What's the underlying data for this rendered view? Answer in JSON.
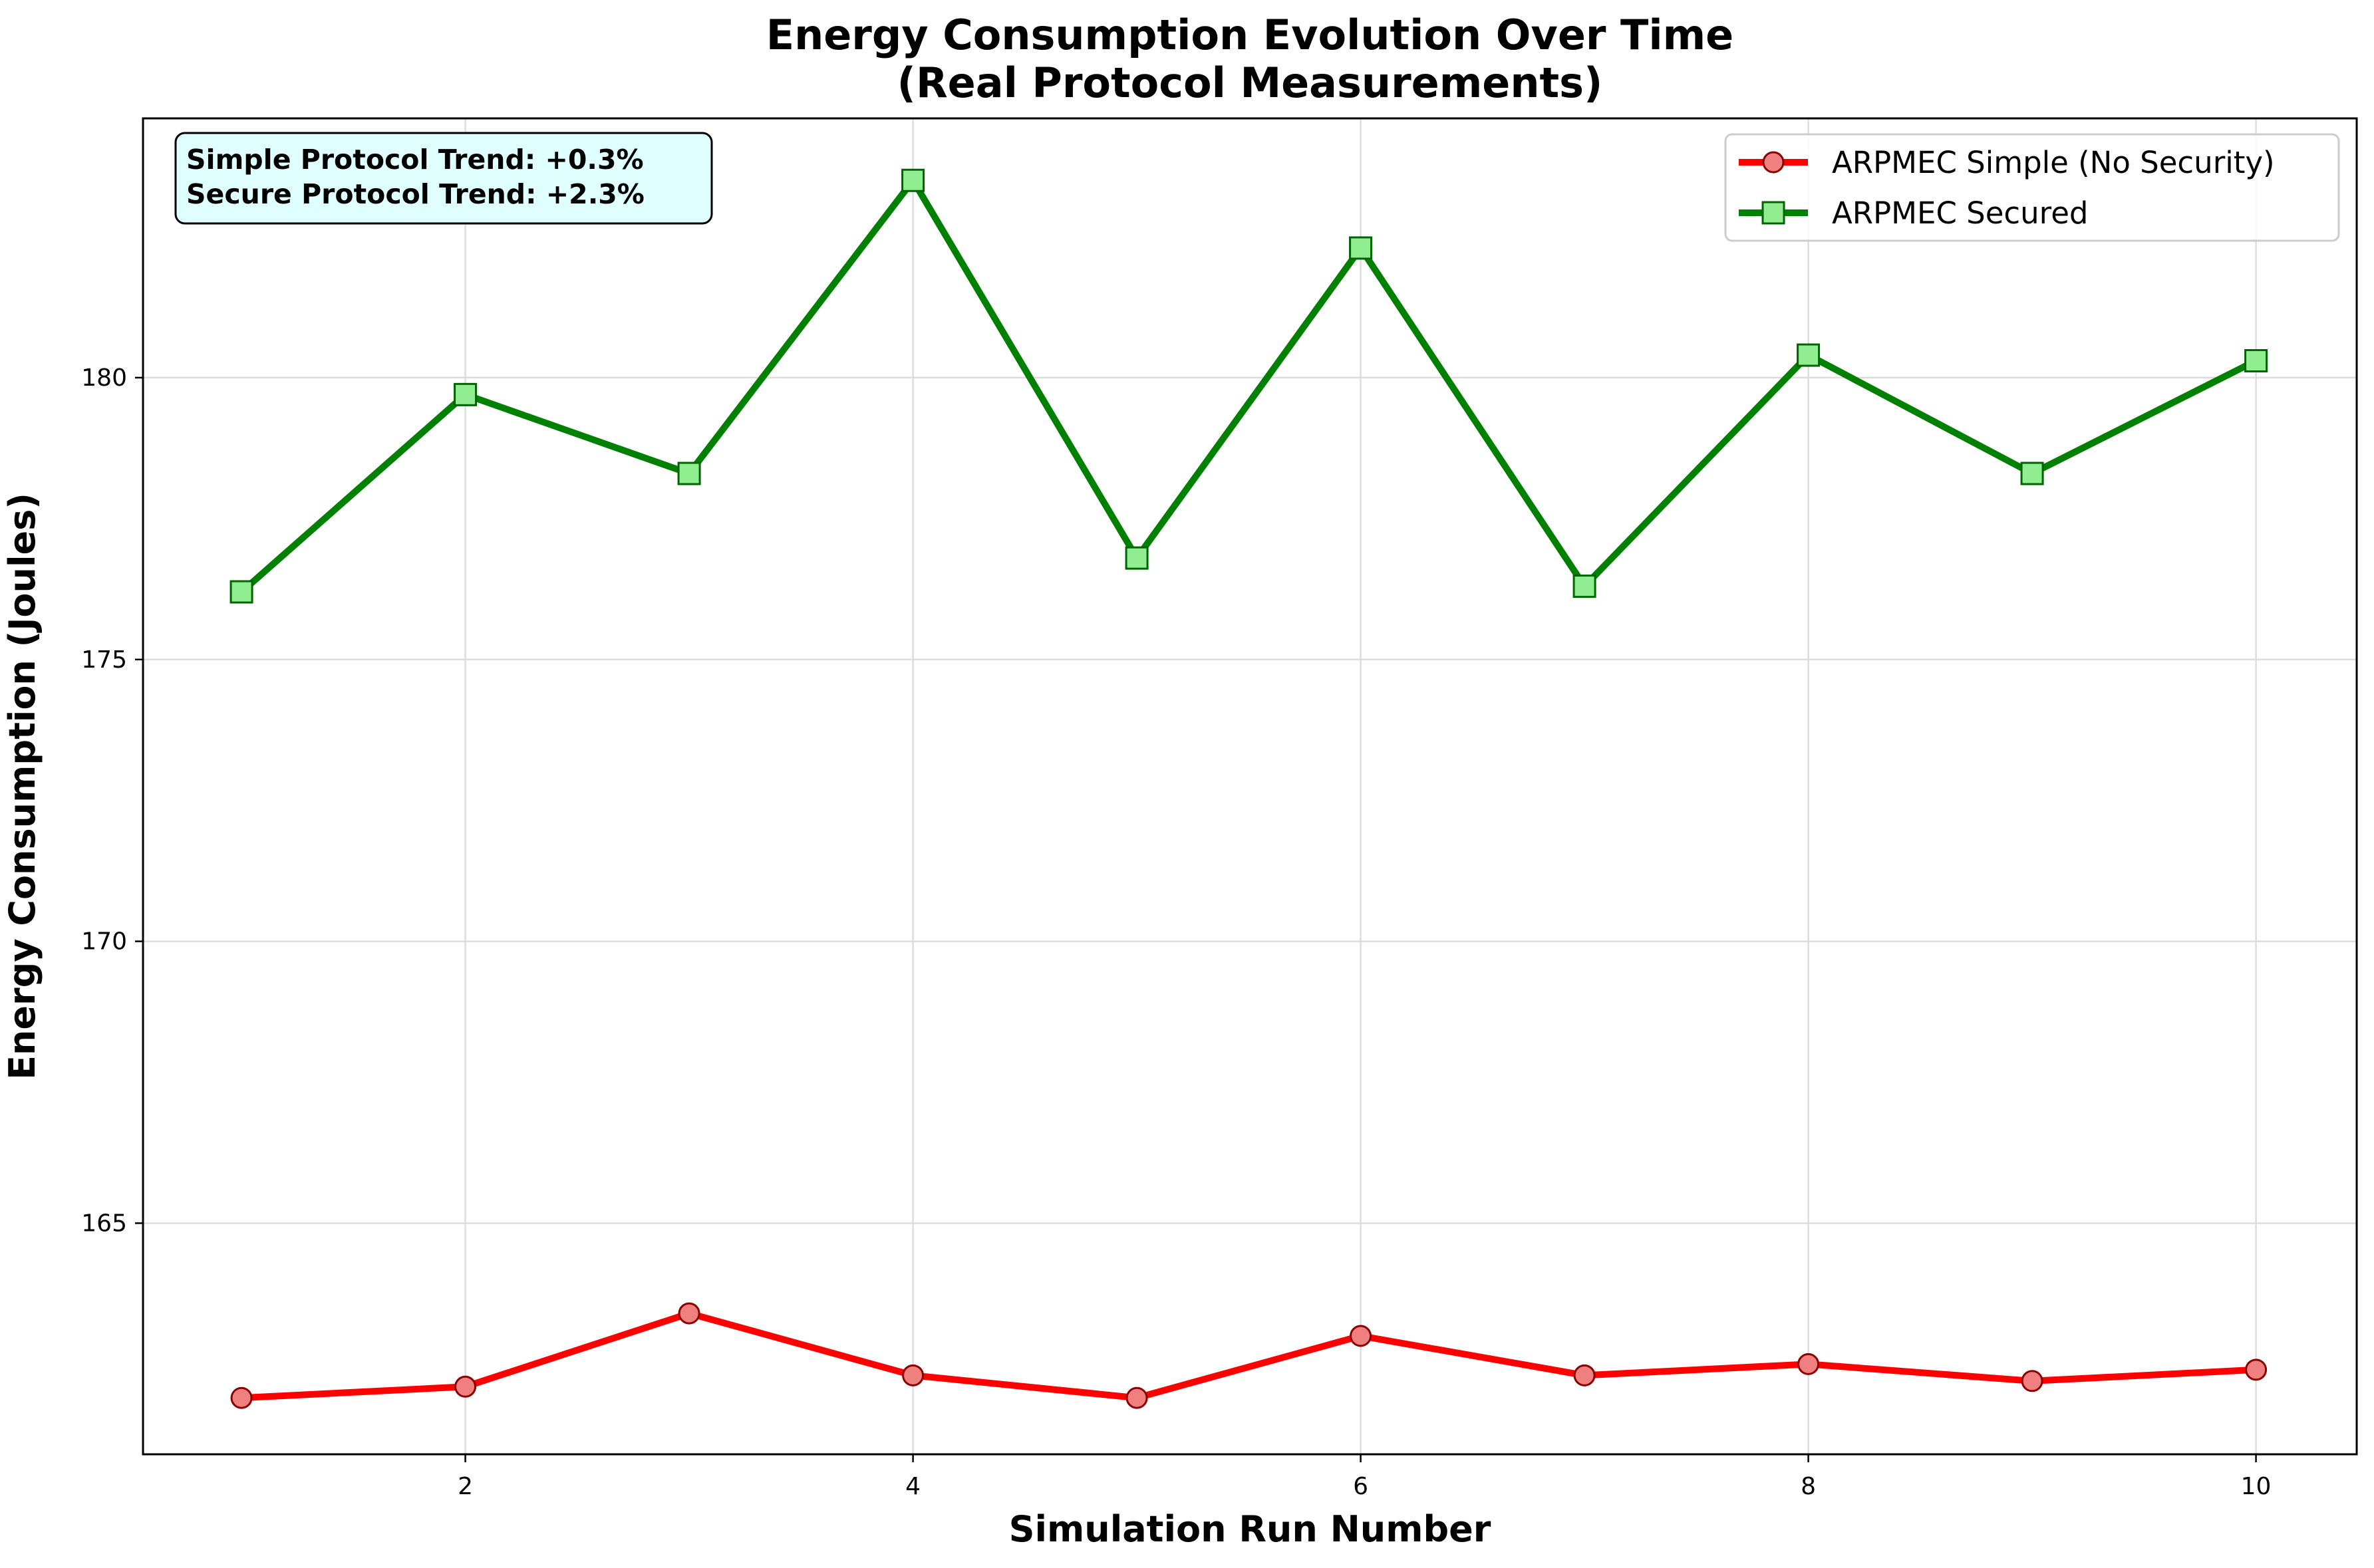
{
  "chart_data": {
    "type": "line",
    "title": "Energy Consumption Evolution Over Time\n(Real Protocol Measurements)",
    "title_lines": [
      "Energy Consumption Evolution Over Time",
      "(Real Protocol Measurements)"
    ],
    "xlabel": "Simulation Run Number",
    "ylabel": "Energy Consumption (Joules)",
    "xlim": [
      0.56,
      10.45
    ],
    "ylim": [
      160.9,
      184.6
    ],
    "xticks": [
      2,
      4,
      6,
      8,
      10
    ],
    "yticks": [
      165,
      170,
      175,
      180
    ],
    "grid": true,
    "legend_position": "upper-right",
    "annotation": {
      "lines": [
        "Simple Protocol Trend: +0.3%",
        "Secure Protocol Trend: +2.3%"
      ],
      "position": "upper-left",
      "background": "#e0ffff"
    },
    "x": [
      1,
      2,
      3,
      4,
      5,
      6,
      7,
      8,
      9,
      10
    ],
    "series": [
      {
        "name": "ARPMEC Simple (No Security)",
        "values": [
          161.9,
          162.1,
          163.4,
          162.3,
          161.9,
          163.0,
          162.3,
          162.5,
          162.2,
          162.4
        ],
        "line_color": "#ff0000",
        "marker": "circle",
        "marker_fill": "#f08080",
        "marker_edge": "#8b0000"
      },
      {
        "name": "ARPMEC Secured",
        "values": [
          176.2,
          179.7,
          178.3,
          183.5,
          176.8,
          182.3,
          176.3,
          180.4,
          178.3,
          180.3
        ],
        "line_color": "#008000",
        "marker": "square",
        "marker_fill": "#90ee90",
        "marker_edge": "#006400"
      }
    ]
  }
}
